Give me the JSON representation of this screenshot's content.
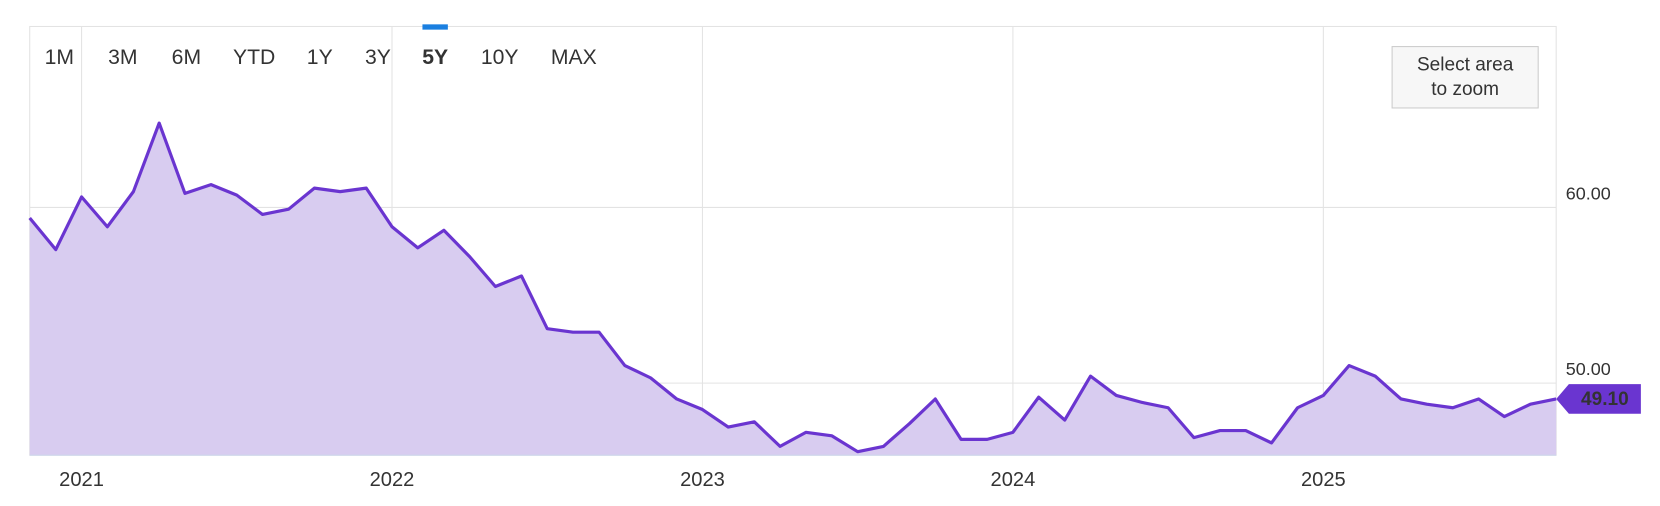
{
  "chart_data": {
    "type": "area",
    "range_buttons": [
      {
        "label": "1M",
        "state": "normal"
      },
      {
        "label": "3M",
        "state": "normal"
      },
      {
        "label": "6M",
        "state": "normal"
      },
      {
        "label": "YTD",
        "state": "normal"
      },
      {
        "label": "1Y",
        "state": "normal"
      },
      {
        "label": "3Y",
        "state": "normal"
      },
      {
        "label": "5Y",
        "state": "active"
      },
      {
        "label": "10Y",
        "state": "disabled"
      },
      {
        "label": "MAX",
        "state": "disabled"
      }
    ],
    "zoom_button": "Select area\nto zoom",
    "x": [
      2020.833,
      2020.917,
      2021.0,
      2021.083,
      2021.167,
      2021.25,
      2021.333,
      2021.417,
      2021.5,
      2021.583,
      2021.667,
      2021.75,
      2021.833,
      2021.917,
      2022.0,
      2022.083,
      2022.167,
      2022.25,
      2022.333,
      2022.417,
      2022.5,
      2022.583,
      2022.667,
      2022.75,
      2022.833,
      2022.917,
      2023.0,
      2023.083,
      2023.167,
      2023.25,
      2023.333,
      2023.417,
      2023.5,
      2023.583,
      2023.667,
      2023.75,
      2023.833,
      2023.917,
      2024.0,
      2024.083,
      2024.167,
      2024.25,
      2024.333,
      2024.417,
      2024.5,
      2024.583,
      2024.667,
      2024.75,
      2024.833,
      2024.917,
      2025.0,
      2025.083,
      2025.167,
      2025.25,
      2025.333,
      2025.417,
      2025.5,
      2025.583,
      2025.667,
      2025.75
    ],
    "series": [
      {
        "color": "#6a35d0",
        "fill": "#d8ccf0",
        "values": [
          59.4,
          57.6,
          60.6,
          58.9,
          60.9,
          64.8,
          60.8,
          61.3,
          60.7,
          59.6,
          59.9,
          61.1,
          60.9,
          61.1,
          58.9,
          57.7,
          58.7,
          57.2,
          55.5,
          56.1,
          53.1,
          52.9,
          52.9,
          51.0,
          50.3,
          49.1,
          48.5,
          47.5,
          47.8,
          46.4,
          47.2,
          47.0,
          46.1,
          46.4,
          47.7,
          49.1,
          46.8,
          46.8,
          47.2,
          49.2,
          47.9,
          50.4,
          49.3,
          48.9,
          48.6,
          46.9,
          47.3,
          47.3,
          46.6,
          48.6,
          49.3,
          51.0,
          50.4,
          49.1,
          48.8,
          48.6,
          49.1,
          48.1,
          48.8,
          49.1
        ],
        "value_labels": [
          null,
          null,
          null,
          null,
          null,
          null,
          null,
          null,
          null,
          null,
          null,
          null,
          null,
          null,
          null,
          null,
          null,
          null,
          null,
          null,
          null,
          null,
          null,
          null,
          null,
          null,
          null,
          null,
          null,
          null,
          null,
          null,
          null,
          null,
          null,
          null,
          null,
          null,
          null,
          null,
          null,
          null,
          null,
          null,
          null,
          null,
          null,
          null,
          null,
          null,
          null,
          null,
          null,
          null,
          null,
          null,
          null,
          null,
          null,
          "49.10"
        ]
      }
    ],
    "xlim": [
      2020.833,
      2025.75
    ],
    "xticks": [
      2021,
      2022,
      2023,
      2024,
      2025
    ],
    "ylim": [
      45.9,
      70.3
    ],
    "yticks": [
      {
        "value": 50,
        "label": "50.00"
      },
      {
        "value": 60,
        "label": "60.00"
      }
    ],
    "grid": true
  }
}
